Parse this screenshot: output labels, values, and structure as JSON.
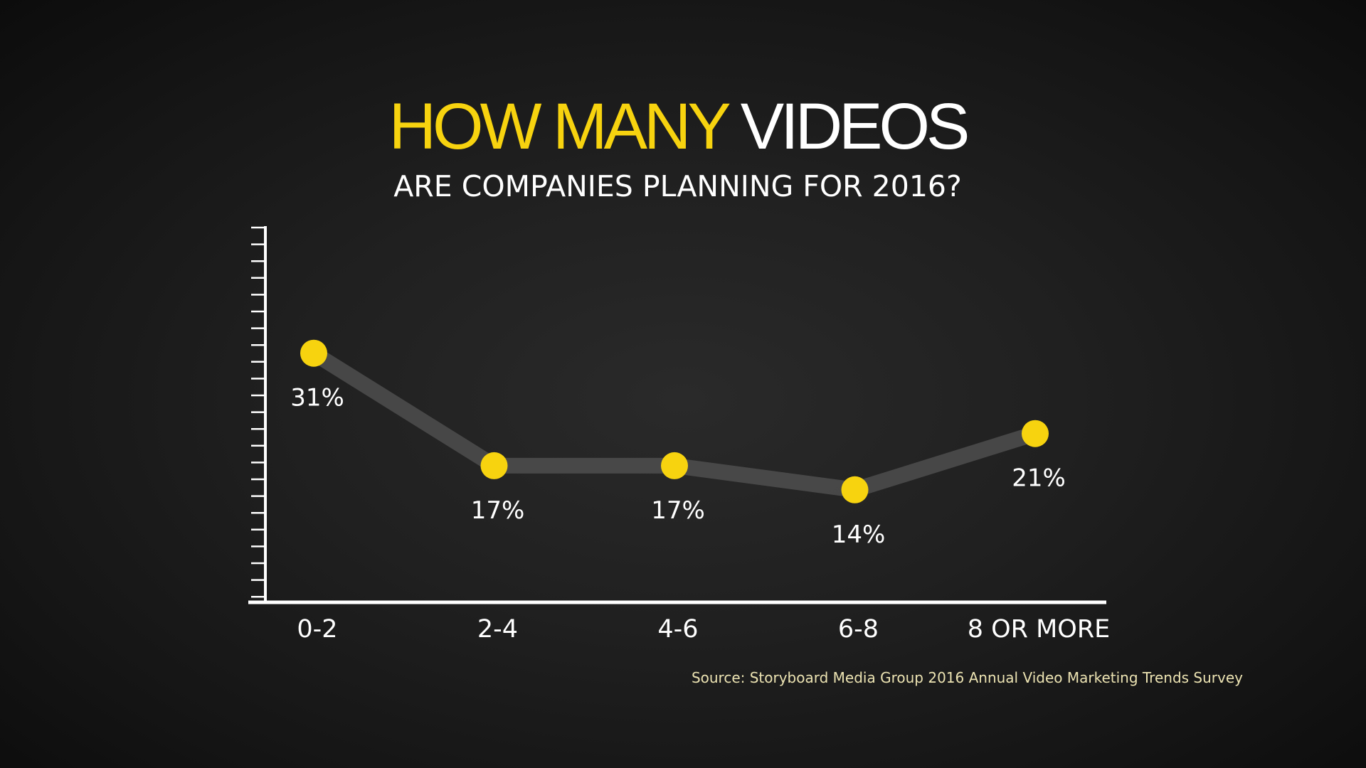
{
  "slide": {
    "title_accent": "HOW MANY",
    "title_main": "VIDEOS",
    "subtitle": "ARE COMPANIES PLANNING FOR 2016?",
    "source": "Source: Storyboard Media Group 2016 Annual Video Marketing Trends Survey"
  },
  "colors": {
    "accent": "#f7d30f",
    "line": "#4a4a4a",
    "axis": "#ffffff",
    "text": "#ffffff"
  },
  "chart_data": {
    "type": "line",
    "categories": [
      "0-2",
      "2-4",
      "4-6",
      "6-8",
      "8 OR MORE"
    ],
    "values": [
      31,
      17,
      17,
      14,
      21
    ],
    "data_labels": [
      "31%",
      "17%",
      "17%",
      "14%",
      "21%"
    ],
    "title": "HOW MANY VIDEOS",
    "subtitle": "ARE COMPANIES PLANNING FOR 2016?",
    "xlabel": "",
    "ylabel": "",
    "ylim": [
      0,
      40
    ],
    "grid": false,
    "legend": "none"
  }
}
